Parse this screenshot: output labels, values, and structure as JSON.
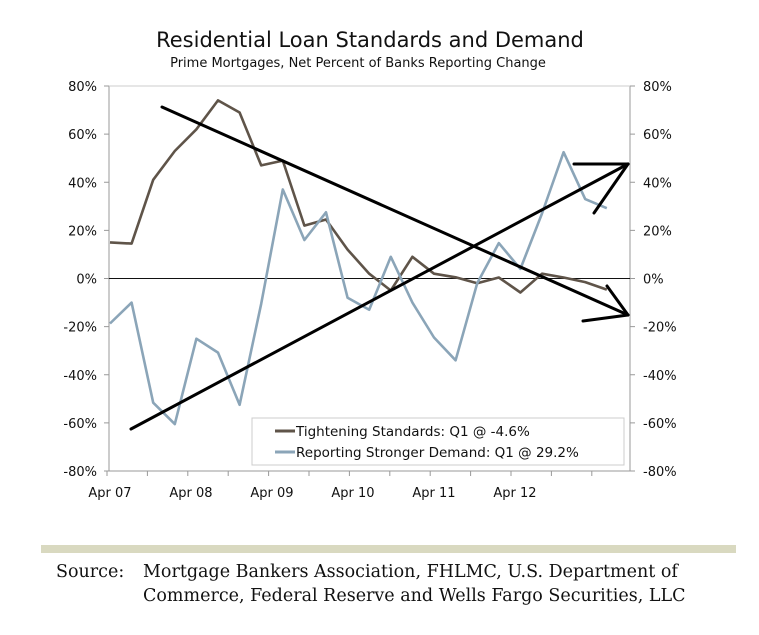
{
  "chart_data": {
    "type": "line",
    "title": "Residential Loan Standards and Demand",
    "subtitle": "Prime Mortgages, Net Percent of Banks Reporting Change",
    "xlabel": "",
    "ylabel": "",
    "ylim": [
      -80,
      80
    ],
    "yticks": [
      "80%",
      "60%",
      "40%",
      "20%",
      "0%",
      "-20%",
      "-40%",
      "-60%",
      "-80%"
    ],
    "ytick_values": [
      80,
      60,
      40,
      20,
      0,
      -20,
      -40,
      -60,
      -80
    ],
    "secondary_yticks": [
      "80%",
      "60%",
      "40%",
      "20%",
      "0%",
      "-20%",
      "-40%",
      "-60%",
      "-80%"
    ],
    "xticks": [
      "Apr 07",
      "Apr 08",
      "Apr 09",
      "Apr 10",
      "Apr 11",
      "Apr 12"
    ],
    "x": [
      "Q2 07",
      "Q3 07",
      "Q4 07",
      "Q1 08",
      "Q2 08",
      "Q3 08",
      "Q4 08",
      "Q1 09",
      "Q2 09",
      "Q3 09",
      "Q4 09",
      "Q1 10",
      "Q2 10",
      "Q3 10",
      "Q4 10",
      "Q1 11",
      "Q2 11",
      "Q3 11",
      "Q4 11",
      "Q1 12",
      "Q2 12",
      "Q3 12",
      "Q4 12",
      "Q1 13"
    ],
    "series": [
      {
        "name": "Tightening Standards: Q1 @ -4.6%",
        "color": "#5f5449",
        "values": [
          15,
          14.5,
          41,
          53,
          62,
          74,
          69,
          47,
          49,
          22,
          24.5,
          12,
          2,
          -5,
          9,
          2,
          0.5,
          -2,
          0.4,
          -5.8,
          2,
          0.4,
          -1.5,
          -4.6
        ]
      },
      {
        "name": "Reporting Stronger Demand: Q1 @ 29.2%",
        "color": "#8ba5b8",
        "values": [
          -18.7,
          -10,
          -51.6,
          -60.5,
          -25,
          -30.8,
          -52.5,
          -10.5,
          37,
          16,
          27.5,
          -8,
          -13,
          9,
          -10,
          -24.5,
          -34,
          -2,
          14.7,
          4,
          27,
          52.5,
          33,
          29.2
        ]
      }
    ],
    "annotations": [
      {
        "type": "hand-drawn-arrow",
        "direction": "down",
        "from_pct": [
          0.1,
          70.8
        ],
        "to_pct": "end@-15.5%"
      },
      {
        "type": "hand-drawn-arrow",
        "direction": "up",
        "from_pct": [
          0.1,
          -62.5
        ],
        "to_pct": "end@47.5%"
      }
    ],
    "legend_position": "lower-right, inside plot",
    "grid": false,
    "zero_line": true
  },
  "legend": {
    "items": [
      {
        "label": "Tightening Standards: Q1 @ -4.6%",
        "color": "#5f5449"
      },
      {
        "label": "Reporting Stronger Demand: Q1 @ 29.2%",
        "color": "#8ba5b8"
      }
    ]
  },
  "footer": {
    "source_label": "Source:",
    "source_line1": "Mortgage Bankers Association, FHLMC, U.S. Department of",
    "source_line2": "Commerce, Federal Reserve and Wells Fargo Securities, LLC",
    "band_color": "#d9d9c0"
  }
}
